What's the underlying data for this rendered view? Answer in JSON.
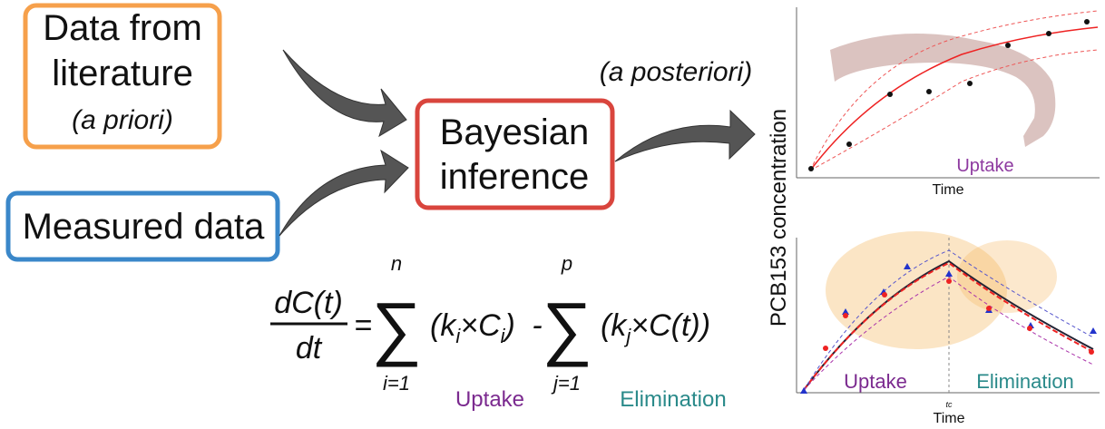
{
  "inputs": {
    "literature": {
      "line1": "Data from",
      "line2": "literature",
      "note": "(a priori)"
    },
    "measured": {
      "label": "Measured data"
    }
  },
  "inference": {
    "line1": "Bayesian",
    "line2": "inference"
  },
  "posterior_label": "(a posteriori)",
  "equation": {
    "numerator": "dC(t)",
    "denominator": "dt",
    "equals": "=",
    "sum1": {
      "symbol": "∑",
      "upper": "n",
      "lower": "i=1",
      "term": [
        "(k",
        "i",
        "×C",
        "i",
        ")"
      ]
    },
    "minus": "-",
    "sum2": {
      "symbol": "∑",
      "upper": "p",
      "lower": "j=1",
      "term": [
        "(k",
        "j",
        "×C(t))"
      ]
    },
    "uptake_label": "Uptake",
    "elimination_label": "Elimination"
  },
  "plots": {
    "y_label": "PCB153 concentration",
    "top": {
      "phase": "Uptake",
      "x_label": "Time"
    },
    "bottom": {
      "phase1": "Uptake",
      "phase2": "Elimination",
      "tc_label": "tc",
      "x_label": "Time"
    }
  }
}
